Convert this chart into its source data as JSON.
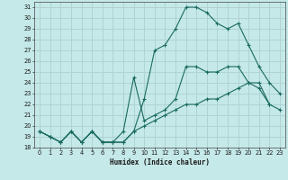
{
  "xlabel": "Humidex (Indice chaleur)",
  "bg_color": "#c5e8e8",
  "grid_color": "#aed4d4",
  "line_color": "#1a6b60",
  "series": [
    {
      "x": [
        0,
        1,
        2,
        3,
        4,
        5,
        6,
        7,
        8,
        9,
        10,
        11,
        12,
        13,
        14,
        15,
        16,
        17,
        18,
        19,
        20,
        21,
        22,
        23
      ],
      "y": [
        19.5,
        19.0,
        18.5,
        19.5,
        18.5,
        19.5,
        18.5,
        18.5,
        18.5,
        19.5,
        20.0,
        20.5,
        21.0,
        21.5,
        22.0,
        22.0,
        22.5,
        22.5,
        23.0,
        23.5,
        24.0,
        24.0,
        22.0,
        21.5
      ]
    },
    {
      "x": [
        0,
        1,
        2,
        3,
        4,
        5,
        6,
        7,
        8,
        9,
        10,
        11,
        12,
        13,
        14,
        15,
        16,
        17,
        18,
        19,
        20,
        21,
        22,
        23
      ],
      "y": [
        19.5,
        19.0,
        18.5,
        19.5,
        18.5,
        19.5,
        18.5,
        18.5,
        19.5,
        24.5,
        20.5,
        21.0,
        21.5,
        22.5,
        25.5,
        25.5,
        25.0,
        25.0,
        25.5,
        25.5,
        24.0,
        23.5,
        22.0,
        null
      ]
    },
    {
      "x": [
        0,
        1,
        2,
        3,
        4,
        5,
        6,
        7,
        8,
        9,
        10,
        11,
        12,
        13,
        14,
        15,
        16,
        17,
        18,
        19,
        20,
        21,
        22,
        23
      ],
      "y": [
        19.5,
        19.0,
        18.5,
        19.5,
        18.5,
        19.5,
        18.5,
        18.5,
        18.5,
        19.5,
        22.5,
        27.0,
        27.5,
        29.0,
        31.0,
        31.0,
        30.5,
        29.5,
        29.0,
        29.5,
        27.5,
        25.5,
        24.0,
        23.0
      ]
    }
  ],
  "ylim": [
    18,
    31.5
  ],
  "xlim": [
    -0.5,
    23.5
  ],
  "yticks": [
    18,
    19,
    20,
    21,
    22,
    23,
    24,
    25,
    26,
    27,
    28,
    29,
    30,
    31
  ],
  "xticks": [
    0,
    1,
    2,
    3,
    4,
    5,
    6,
    7,
    8,
    9,
    10,
    11,
    12,
    13,
    14,
    15,
    16,
    17,
    18,
    19,
    20,
    21,
    22,
    23
  ]
}
